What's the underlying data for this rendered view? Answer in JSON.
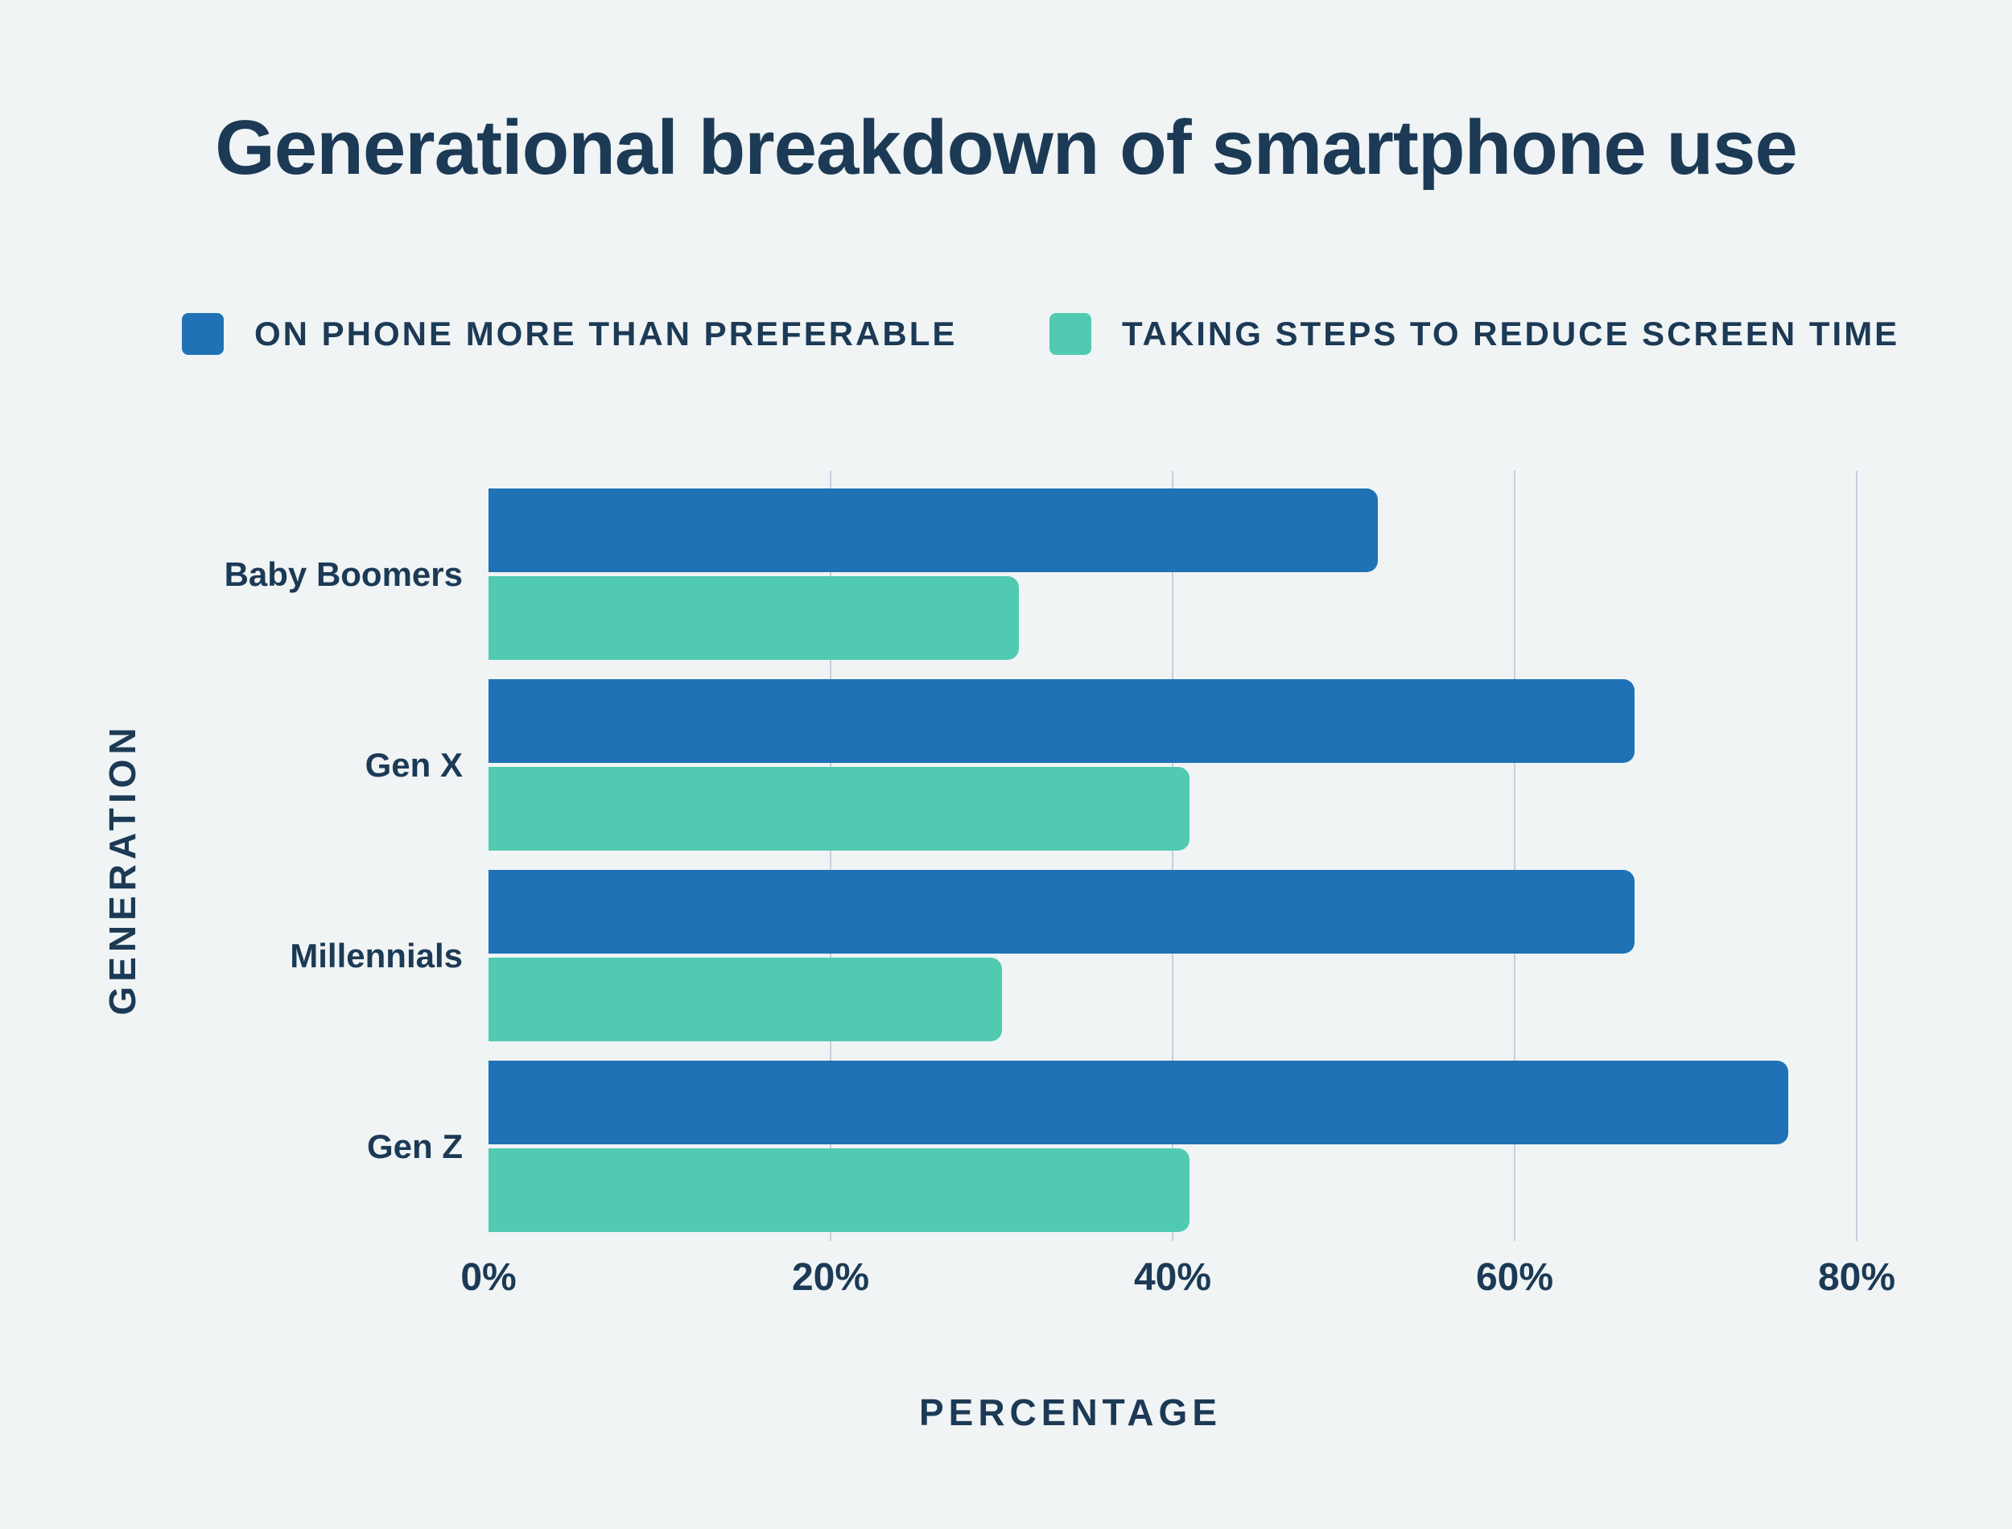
{
  "title": "Generational breakdown of smartphone use",
  "legend": [
    {
      "label": "ON PHONE MORE THAN PREFERABLE",
      "color": "#1f72b5"
    },
    {
      "label": "TAKING STEPS TO REDUCE SCREEN TIME",
      "color": "#50cbb1"
    }
  ],
  "chart_data": {
    "type": "bar",
    "orientation": "horizontal",
    "title": "Generational breakdown of smartphone use",
    "categories": [
      "Baby Boomers",
      "Gen X",
      "Millennials",
      "Gen Z"
    ],
    "series": [
      {
        "name": "ON PHONE MORE THAN PREFERABLE",
        "color": "#1f72b5",
        "values": [
          52,
          67,
          67,
          76
        ]
      },
      {
        "name": "TAKING STEPS TO REDUCE SCREEN TIME",
        "color": "#50cbb1",
        "values": [
          31,
          41,
          30,
          41
        ]
      }
    ],
    "xlabel": "PERCENTAGE",
    "ylabel": "GENERATION",
    "xlim": [
      0,
      80
    ],
    "xticks": [
      "0%",
      "20%",
      "40%",
      "60%",
      "80%"
    ],
    "xtick_values": [
      0,
      20,
      40,
      60,
      80
    ],
    "grid": "vertical",
    "legend_position": "top",
    "background_color": "#f0f4f5",
    "text_color": "#1c3a55",
    "gridline_color": "#c9cedb"
  }
}
